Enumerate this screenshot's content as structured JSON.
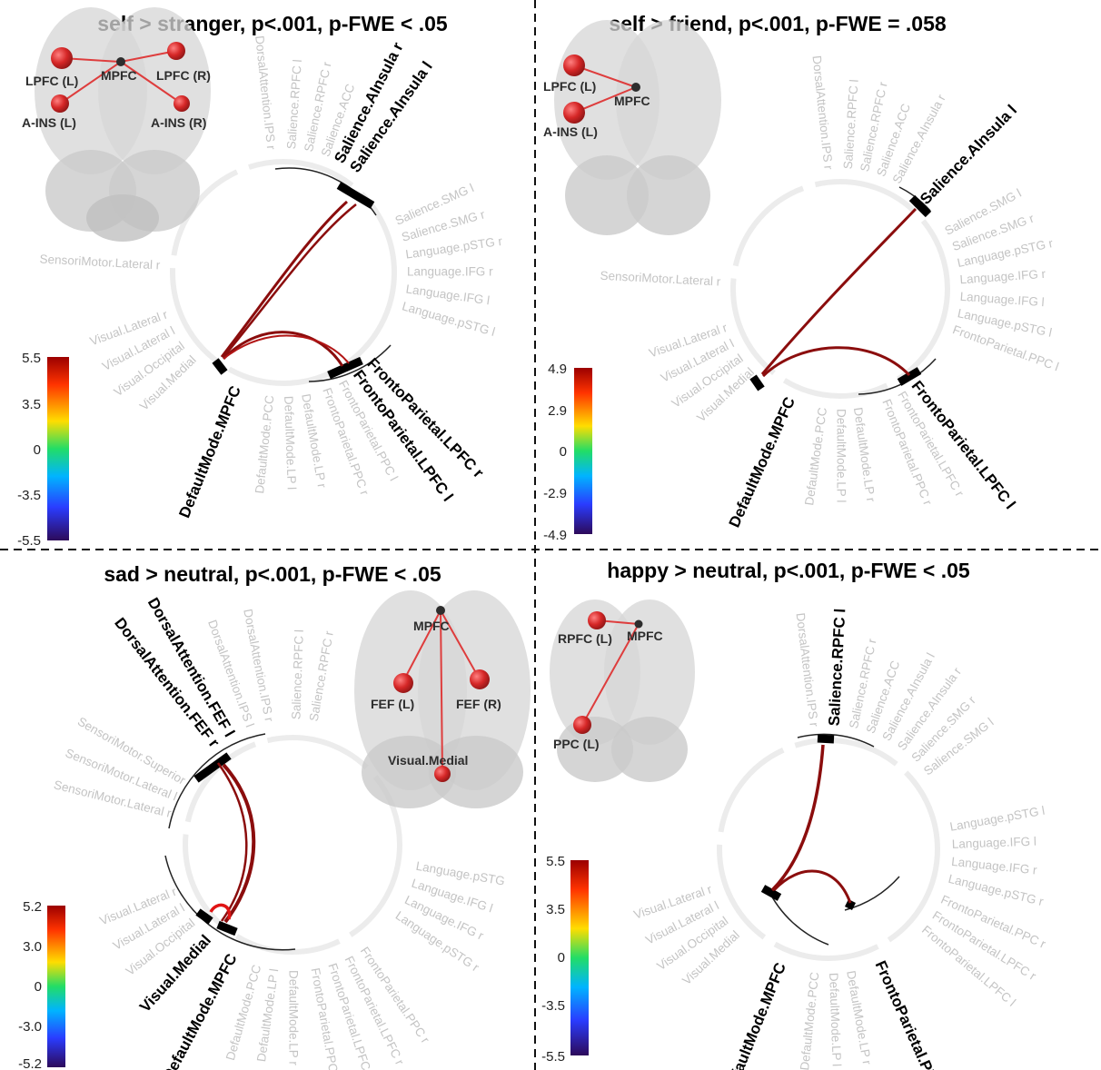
{
  "panels": [
    {
      "id": "self-stranger",
      "title": "self > stranger, p<.001, p-FWE < .05",
      "colorbar": {
        "ticks": [
          "5.5",
          "3.5",
          "0",
          "-3.5",
          "-5.5"
        ]
      },
      "labels": [
        {
          "text": "Salience.AInsula r",
          "angle": -63,
          "bold": true
        },
        {
          "text": "Salience.AInsula l",
          "angle": -55,
          "bold": true
        },
        {
          "text": "Salience.SMG l",
          "angle": -24,
          "bold": false
        },
        {
          "text": "Salience.SMG r",
          "angle": -16,
          "bold": false
        },
        {
          "text": "Language.pSTG r",
          "angle": -8,
          "bold": false
        },
        {
          "text": "Language.IFG r",
          "angle": 0,
          "bold": false
        },
        {
          "text": "Language.IFG l",
          "angle": 8,
          "bold": false
        },
        {
          "text": "Language.pSTG l",
          "angle": 16,
          "bold": false
        },
        {
          "text": "FrontoParietal.LPFC r",
          "angle": 46,
          "bold": true
        },
        {
          "text": "FrontoParietal.LPFC l",
          "angle": 54,
          "bold": true
        },
        {
          "text": "FrontoParietal.PPC l",
          "angle": 62,
          "bold": false
        },
        {
          "text": "FrontoParietal.PPC r",
          "angle": 70,
          "bold": false
        },
        {
          "text": "DefaultMode.LP r",
          "angle": 80,
          "bold": false
        },
        {
          "text": "DefaultMode.LP l",
          "angle": 88,
          "bold": false
        },
        {
          "text": "DefaultMode.PCC",
          "angle": 96,
          "bold": false
        },
        {
          "text": "DefaultMode.MPFC",
          "angle": 112,
          "bold": true
        },
        {
          "text": "Visual.Medial",
          "angle": 136,
          "bold": false
        },
        {
          "text": "Visual.Occipital",
          "angle": 144,
          "bold": false
        },
        {
          "text": "Visual.Lateral l",
          "angle": 152,
          "bold": false
        },
        {
          "text": "Visual.Lateral r",
          "angle": 160,
          "bold": false
        },
        {
          "text": "SensoriMotor.Lateral r",
          "angle": 183,
          "bold": false
        },
        {
          "text": "Salience.ACC",
          "angle": -70,
          "bold": false
        },
        {
          "text": "Salience.RPFC r",
          "angle": -78,
          "bold": false
        },
        {
          "text": "Salience.RPFC l",
          "angle": -86,
          "bold": false
        },
        {
          "text": "DorsalAttention.IPS r",
          "angle": -96,
          "bold": false
        }
      ],
      "brain": {
        "nodes": [
          {
            "text": "LPFC (L)"
          },
          {
            "text": "MPFC"
          },
          {
            "text": "LPFC (R)"
          },
          {
            "text": "A-INS (L)"
          },
          {
            "text": "A-INS (R)"
          }
        ]
      }
    },
    {
      "id": "self-friend",
      "title": "self > friend, p<.001, p-FWE = .058",
      "colorbar": {
        "ticks": [
          "4.9",
          "2.9",
          "0",
          "-2.9",
          "-4.9"
        ]
      },
      "labels": [
        {
          "text": "Salience.AInsula l",
          "angle": -46,
          "bold": true
        },
        {
          "text": "Salience.AInsula r",
          "angle": -62,
          "bold": false
        },
        {
          "text": "Salience.ACC",
          "angle": -70,
          "bold": false
        },
        {
          "text": "Salience.RPFC r",
          "angle": -78,
          "bold": false
        },
        {
          "text": "Salience.RPFC l",
          "angle": -86,
          "bold": false
        },
        {
          "text": "DorsalAttention.IPS r",
          "angle": -96,
          "bold": false
        },
        {
          "text": "Salience.SMG l",
          "angle": -28,
          "bold": false
        },
        {
          "text": "Salience.SMG r",
          "angle": -20,
          "bold": false
        },
        {
          "text": "Language.pSTG r",
          "angle": -12,
          "bold": false
        },
        {
          "text": "Language.IFG r",
          "angle": -4,
          "bold": false
        },
        {
          "text": "Language.IFG l",
          "angle": 4,
          "bold": false
        },
        {
          "text": "Language.pSTG l",
          "angle": 12,
          "bold": false
        },
        {
          "text": "FrontoParietal.PPC l",
          "angle": 20,
          "bold": false
        },
        {
          "text": "FrontoParietal.LPFC l",
          "angle": 52,
          "bold": true
        },
        {
          "text": "FrontoParietal.LPFC r",
          "angle": 60,
          "bold": false
        },
        {
          "text": "FrontoParietal.PPC r",
          "angle": 68,
          "bold": false
        },
        {
          "text": "DefaultMode.LP r",
          "angle": 82,
          "bold": false
        },
        {
          "text": "DefaultMode.LP l",
          "angle": 90,
          "bold": false
        },
        {
          "text": "DefaultMode.PCC",
          "angle": 98,
          "bold": false
        },
        {
          "text": "DefaultMode.MPFC",
          "angle": 114,
          "bold": true
        },
        {
          "text": "Visual.Medial",
          "angle": 137,
          "bold": false
        },
        {
          "text": "Visual.Occipital",
          "angle": 145,
          "bold": false
        },
        {
          "text": "Visual.Lateral l",
          "angle": 153,
          "bold": false
        },
        {
          "text": "Visual.Lateral r",
          "angle": 161,
          "bold": false
        },
        {
          "text": "SensoriMotor.Lateral r",
          "angle": 183,
          "bold": false
        }
      ],
      "brain": {
        "nodes": [
          {
            "text": "LPFC (L)"
          },
          {
            "text": "MPFC"
          },
          {
            "text": "A-INS (L)"
          }
        ]
      }
    },
    {
      "id": "sad-neutral",
      "title": "sad > neutral, p<.001, p-FWE < .05",
      "colorbar": {
        "ticks": [
          "5.2",
          "3.0",
          "0",
          "-3.0",
          "-5.2"
        ]
      },
      "labels": [
        {
          "text": "DorsalAttention.FEF l",
          "angle": -120,
          "bold": true
        },
        {
          "text": "DorsalAttention.FEF r",
          "angle": -128,
          "bold": true
        },
        {
          "text": "DorsalAttention.IPS l",
          "angle": -110,
          "bold": false
        },
        {
          "text": "DorsalAttention.IPS r",
          "angle": -101,
          "bold": false
        },
        {
          "text": "Salience.RPFC l",
          "angle": -88,
          "bold": false
        },
        {
          "text": "Salience.RPFC r",
          "angle": -80,
          "bold": false
        },
        {
          "text": "SensoriMotor.Superior",
          "angle": -150,
          "bold": false
        },
        {
          "text": "SensoriMotor.Lateral l",
          "angle": -158,
          "bold": false
        },
        {
          "text": "SensoriMotor.Lateral r",
          "angle": -166,
          "bold": false
        },
        {
          "text": "Visual.Lateral r",
          "angle": 158,
          "bold": false
        },
        {
          "text": "Visual.Lateral l",
          "angle": 150,
          "bold": false
        },
        {
          "text": "Visual.Occipital",
          "angle": 142,
          "bold": false
        },
        {
          "text": "Visual.Medial",
          "angle": 132,
          "bold": true
        },
        {
          "text": "DefaultMode.MPFC",
          "angle": 118,
          "bold": true
        },
        {
          "text": "DefaultMode.PCC",
          "angle": 106,
          "bold": false
        },
        {
          "text": "DefaultMode.LP l",
          "angle": 98,
          "bold": false
        },
        {
          "text": "DefaultMode.LP r",
          "angle": 90,
          "bold": false
        },
        {
          "text": "FrontoParietal.PPC l",
          "angle": 80,
          "bold": false
        },
        {
          "text": "FrontoParietal.LPFC l",
          "angle": 72,
          "bold": false
        },
        {
          "text": "FrontoParietal.LPFC r",
          "angle": 64,
          "bold": false
        },
        {
          "text": "FrontoParietal.PPC r",
          "angle": 56,
          "bold": false
        },
        {
          "text": "Language.pSTG r",
          "angle": 34,
          "bold": false
        },
        {
          "text": "Language.IFG r",
          "angle": 26,
          "bold": false
        },
        {
          "text": "Language.IFG l",
          "angle": 18,
          "bold": false
        },
        {
          "text": "Language.pSTG",
          "angle": 10,
          "bold": false
        }
      ],
      "brain": {
        "nodes": [
          {
            "text": "MPFC"
          },
          {
            "text": "FEF (L)"
          },
          {
            "text": "FEF (R)"
          },
          {
            "text": "Visual.Medial"
          }
        ]
      }
    },
    {
      "id": "happy-neutral",
      "title": "happy > neutral, p<.001, p-FWE < .05",
      "colorbar": {
        "ticks": [
          "5.5",
          "3.5",
          "0",
          "-3.5",
          "-5.5"
        ]
      },
      "labels": [
        {
          "text": "Salience.RPFC l",
          "angle": -87,
          "bold": true
        },
        {
          "text": "Salience.RPFC r",
          "angle": -78,
          "bold": false
        },
        {
          "text": "Salience.ACC",
          "angle": -70,
          "bold": false
        },
        {
          "text": "Salience.AInsula l",
          "angle": -62,
          "bold": false
        },
        {
          "text": "Salience.AInsula r",
          "angle": -54,
          "bold": false
        },
        {
          "text": "Salience.SMG r",
          "angle": -46,
          "bold": false
        },
        {
          "text": "Salience.SMG l",
          "angle": -38,
          "bold": false
        },
        {
          "text": "DorsalAttention.IPS r",
          "angle": -97,
          "bold": false
        },
        {
          "text": "Language.pSTG l",
          "angle": -10,
          "bold": false
        },
        {
          "text": "Language.IFG l",
          "angle": -2,
          "bold": false
        },
        {
          "text": "Language.IFG r",
          "angle": 6,
          "bold": false
        },
        {
          "text": "Language.pSTG r",
          "angle": 14,
          "bold": false
        },
        {
          "text": "FrontoParietal.PPC r",
          "angle": 24,
          "bold": false
        },
        {
          "text": "FrontoParietal.LPFC r",
          "angle": 32,
          "bold": false
        },
        {
          "text": "FrontoParietal.LPFC l",
          "angle": 40,
          "bold": false
        },
        {
          "text": "FrontoParietal.PPC l",
          "angle": 66,
          "bold": true
        },
        {
          "text": "DefaultMode.LP r",
          "angle": 80,
          "bold": false
        },
        {
          "text": "DefaultMode.LP l",
          "angle": 88,
          "bold": false
        },
        {
          "text": "DefaultMode.PCC",
          "angle": 96,
          "bold": false
        },
        {
          "text": "DefaultMode.MPFC",
          "angle": 112,
          "bold": true
        },
        {
          "text": "Visual.Medial",
          "angle": 137,
          "bold": false
        },
        {
          "text": "Visual.Occipital",
          "angle": 145,
          "bold": false
        },
        {
          "text": "Visual.Lateral l",
          "angle": 153,
          "bold": false
        },
        {
          "text": "Visual.Lateral r",
          "angle": 161,
          "bold": false
        }
      ],
      "brain": {
        "nodes": [
          {
            "text": "RPFC (L)"
          },
          {
            "text": "MPFC"
          },
          {
            "text": "PPC (L)"
          }
        ]
      }
    }
  ],
  "colors": {
    "connection": "#8b0d0d",
    "node": "#d42020",
    "bold_segment": "#000000",
    "faint_ring": "#ececec",
    "faint_text": "#c4c4c4",
    "colormap": [
      "#9b0000",
      "#ff3300",
      "#ffdd00",
      "#22dd66",
      "#00b4ff",
      "#2a3cff",
      "#2d0a5a"
    ]
  }
}
